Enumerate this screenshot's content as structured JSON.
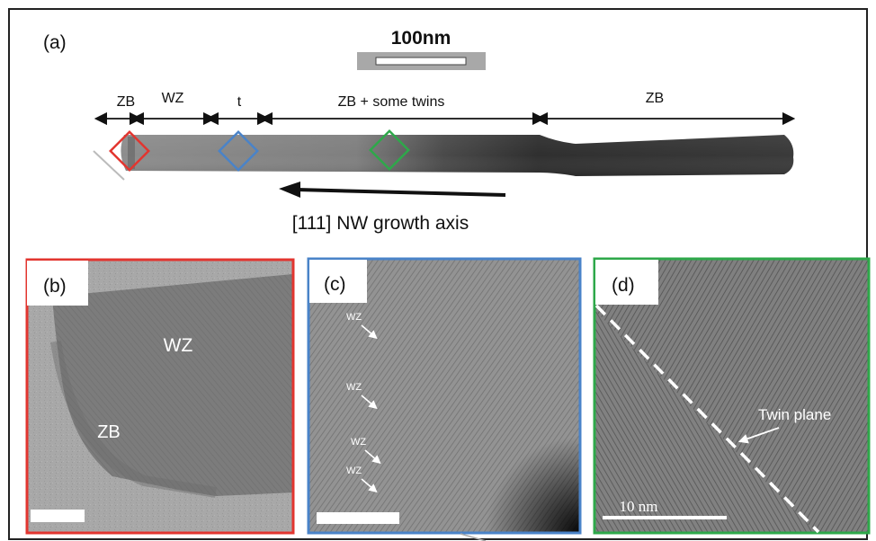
{
  "panel_a": {
    "label": "(a)",
    "scale_bar_label": "100nm",
    "regions": [
      "ZB",
      "WZ",
      "t",
      "ZB + some twins",
      "ZB"
    ],
    "growth_axis_label": "[111] NW growth axis"
  },
  "panel_b": {
    "label": "(b)",
    "annotations": [
      "WZ",
      "ZB"
    ]
  },
  "panel_c": {
    "label": "(c)",
    "annotations": [
      "WZ",
      "WZ",
      "WZ",
      "WZ"
    ]
  },
  "panel_d": {
    "label": "(d)",
    "annotation": "Twin plane",
    "scale_bar_label": "10 nm"
  },
  "colors": {
    "panel_b_frame": "#e2352f",
    "panel_c_frame": "#4a83c8",
    "panel_d_frame": "#2ea84a"
  }
}
